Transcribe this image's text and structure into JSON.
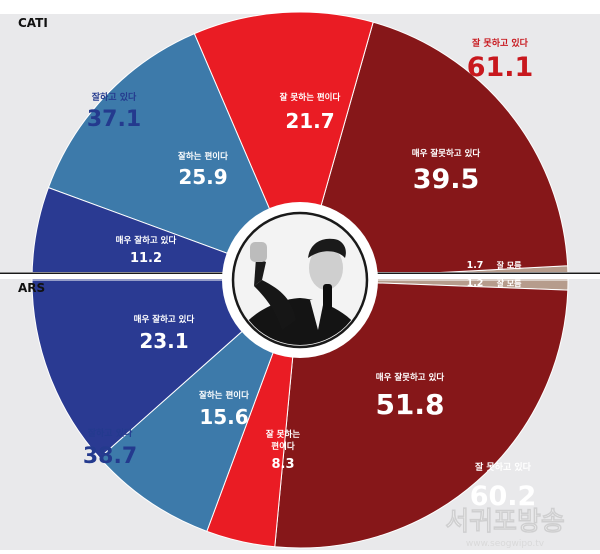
{
  "colors": {
    "panel_bg": "#e9e9eb",
    "very_good": "#2a3a92",
    "good": "#3d7aaa",
    "bad": "#ea1c24",
    "very_bad": "#861719",
    "dont_know": "#b69c8c",
    "good_total_text": "#243a8e",
    "bad_total_text": "#c8181e"
  },
  "chart_data": [
    {
      "type": "pie",
      "panel": "CATI",
      "categories": [
        "매우 잘하고 있다",
        "잘하는 편이다",
        "잘 못하는 편이다",
        "매우 잘못하고 있다",
        "잘 모름"
      ],
      "values": [
        11.2,
        25.9,
        21.7,
        39.5,
        1.7
      ],
      "value_labels": [
        "11.2",
        "25.9",
        "21.7",
        "39.5",
        "1.7"
      ],
      "totals": {
        "good_label": "잘하고 있다",
        "good_value": "37.1",
        "bad_label": "잘 못하고 있다",
        "bad_value": "61.1"
      },
      "dont_know_label": "잘 모름"
    },
    {
      "type": "pie",
      "panel": "ARS",
      "categories": [
        "매우 잘하고 있다",
        "잘하는 편이다",
        "잘 못하는 편이다",
        "매우 잘못하고 있다",
        "잘 모름"
      ],
      "values": [
        23.1,
        15.6,
        8.3,
        51.8,
        1.2
      ],
      "value_labels": [
        "23.1",
        "15.6",
        "8.3",
        "51.8",
        "1.2"
      ],
      "totals": {
        "good_label": "잘하고 있다",
        "good_value": "38.7",
        "bad_label": "잘 못하고 있다",
        "bad_value": "60.2"
      },
      "dont_know_label": "잘 모름"
    }
  ],
  "labels": {
    "cati": "CATI",
    "ars": "ARS",
    "bad_slice_ars_line1": "잘 못하는",
    "bad_slice_ars_line2": "편이다"
  },
  "watermark": "서귀포방송",
  "watermark_url": "www.seogwipo.tv",
  "center_image": "photo-of-person-raising-fist"
}
